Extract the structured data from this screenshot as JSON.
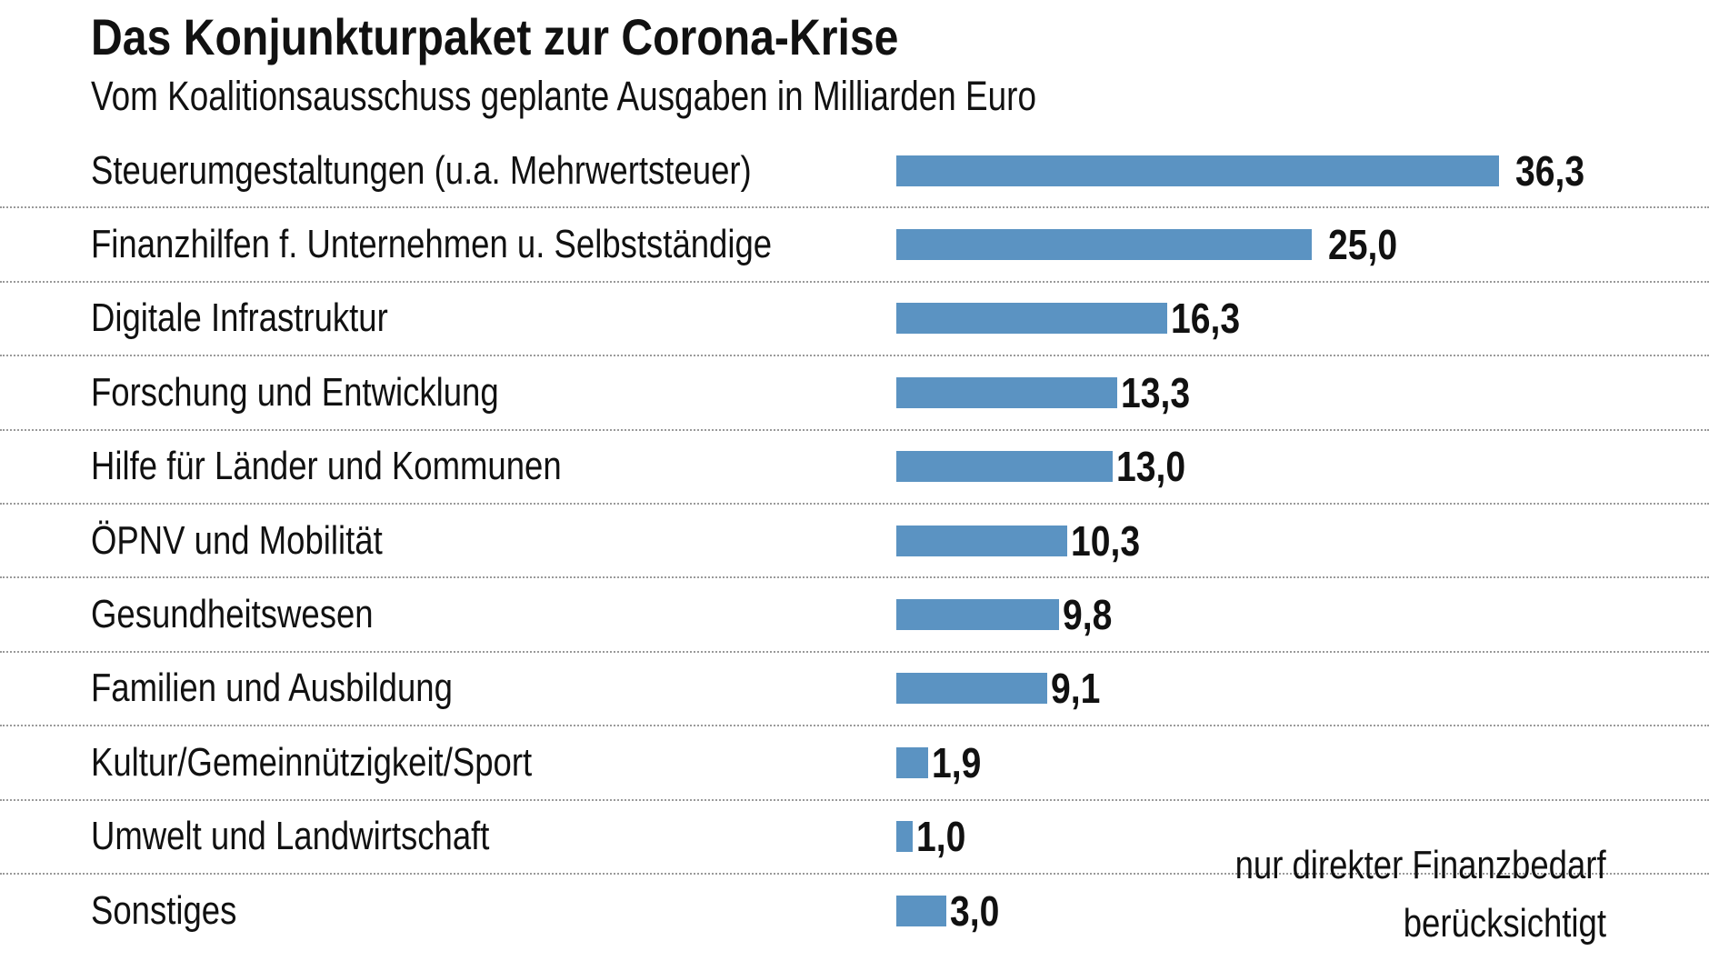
{
  "chart_data": {
    "type": "bar",
    "orientation": "horizontal",
    "title": "Das Konjunkturpaket zur Corona-Krise",
    "subtitle": "Vom Koalitionsausschuss geplante Ausgaben in Milliarden Euro",
    "categories": [
      "Steuerumgestaltungen (u.a. Mehrwertsteuer)",
      "Finanzhilfen f. Unternehmen u. Selbstständige",
      "Digitale Infrastruktur",
      "Forschung und Entwicklung",
      "Hilfe für Länder und Kommunen",
      "ÖPNV und Mobilität",
      "Gesundheitswesen",
      "Familien und Ausbildung",
      "Kultur/Gemeinnützigkeit/Sport",
      "Umwelt und Landwirtschaft",
      "Sonstiges"
    ],
    "values": [
      36.3,
      25.0,
      16.3,
      13.3,
      13.0,
      10.3,
      9.8,
      9.1,
      1.9,
      1.0,
      3.0
    ],
    "value_labels": [
      "36,3",
      "25,0",
      "16,3",
      "13,3",
      "13,0",
      "10,3",
      "9,8",
      "9,1",
      "1,9",
      "1,0",
      "3,0"
    ],
    "unit": "Milliarden Euro",
    "bar_color": "#5b93c2",
    "grid": false,
    "note": [
      "nur direkter Finanzbedarf",
      "berücksichtigt"
    ]
  }
}
